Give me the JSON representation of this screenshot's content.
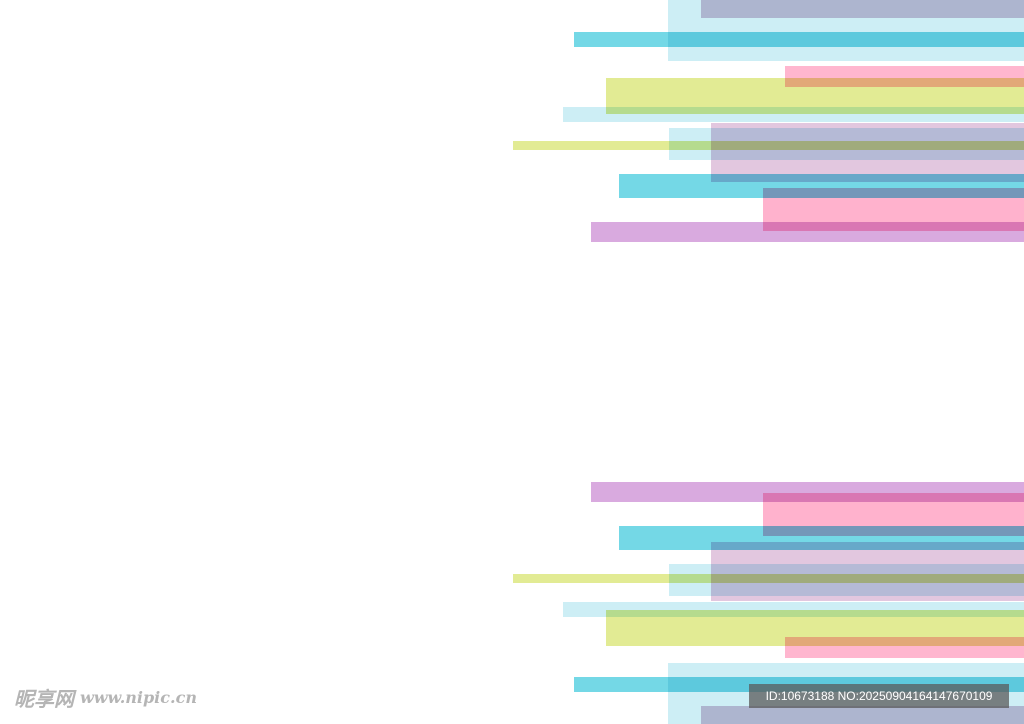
{
  "watermark": {
    "site": "昵享网",
    "url": "www.nipic.cn",
    "id": "ID:10673188 NO:20250904164147670109"
  }
}
